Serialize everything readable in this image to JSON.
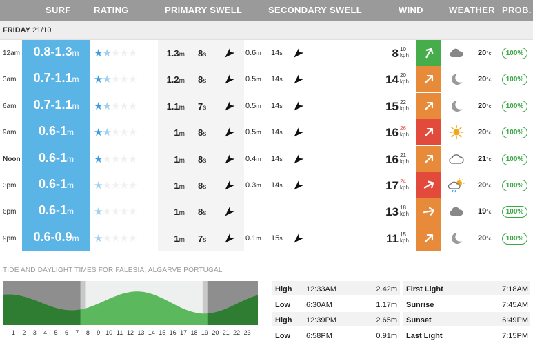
{
  "header": {
    "surf": "SURF",
    "rating": "RATING",
    "primary_swell": "PRIMARY SWELL",
    "secondary_swell": "SECONDARY SWELL",
    "wind": "WIND",
    "weather": "WEATHER",
    "prob": "PROB."
  },
  "day": {
    "name": "FRIDAY",
    "date": "21/10"
  },
  "colors": {
    "header": "#9a9a9a",
    "surf": "#5ab4e5",
    "star": "#3b9ce0",
    "wind_green": "#47ad4b",
    "wind_orange": "#e78b3a",
    "wind_red": "#e24a3b",
    "prob_green": "#3aa845",
    "tide_dark": "#2e7d32",
    "tide_light": "#5cb85c"
  },
  "rows": [
    {
      "time": "12am",
      "surf": "0.8-1.3",
      "surf_unit": "m",
      "stars_full": 1,
      "stars_half": 1,
      "p_height": "1.3",
      "p_height_unit": "m",
      "p_period": "8",
      "p_period_unit": "s",
      "p_dir_deg": 225,
      "s_height": "0.6",
      "s_height_unit": "m",
      "s_period": "14",
      "s_period_unit": "s",
      "s_dir_deg": 225,
      "wind": "8",
      "gust": "10",
      "wind_unit": "kph",
      "wind_level": "green",
      "wind_dir_deg": 30,
      "weather_icon": "cloud-icon",
      "temp": "20",
      "temp_unit": "°c",
      "prob": "100%"
    },
    {
      "time": "3am",
      "surf": "0.7-1.1",
      "surf_unit": "m",
      "stars_full": 1,
      "stars_half": 1,
      "p_height": "1.2",
      "p_height_unit": "m",
      "p_period": "8",
      "p_period_unit": "s",
      "p_dir_deg": 225,
      "s_height": "0.5",
      "s_height_unit": "m",
      "s_period": "14",
      "s_period_unit": "s",
      "s_dir_deg": 225,
      "wind": "14",
      "gust": "20",
      "wind_unit": "kph",
      "wind_level": "orange",
      "wind_dir_deg": 45,
      "weather_icon": "moon-icon",
      "temp": "20",
      "temp_unit": "°c",
      "prob": "100%"
    },
    {
      "time": "6am",
      "surf": "0.7-1.1",
      "surf_unit": "m",
      "stars_full": 1,
      "stars_half": 1,
      "p_height": "1.1",
      "p_height_unit": "m",
      "p_period": "7",
      "p_period_unit": "s",
      "p_dir_deg": 225,
      "s_height": "0.5",
      "s_height_unit": "m",
      "s_period": "14",
      "s_period_unit": "s",
      "s_dir_deg": 225,
      "wind": "15",
      "gust": "22",
      "wind_unit": "kph",
      "wind_level": "orange",
      "wind_dir_deg": 45,
      "weather_icon": "moon-icon",
      "temp": "20",
      "temp_unit": "°c",
      "prob": "100%"
    },
    {
      "time": "9am",
      "surf": "0.6-1",
      "surf_unit": "m",
      "stars_full": 1,
      "stars_half": 1,
      "p_height": "1",
      "p_height_unit": "m",
      "p_period": "8",
      "p_period_unit": "s",
      "p_dir_deg": 225,
      "s_height": "0.5",
      "s_height_unit": "m",
      "s_period": "14",
      "s_period_unit": "s",
      "s_dir_deg": 225,
      "wind": "16",
      "gust": "26",
      "wind_unit": "kph",
      "wind_level": "red",
      "wind_dir_deg": 45,
      "weather_icon": "sun-icon",
      "temp": "20",
      "temp_unit": "°c",
      "prob": "100%"
    },
    {
      "time": "Noon",
      "surf": "0.6-1",
      "surf_unit": "m",
      "stars_full": 1,
      "stars_half": 0,
      "p_height": "1",
      "p_height_unit": "m",
      "p_period": "8",
      "p_period_unit": "s",
      "p_dir_deg": 225,
      "s_height": "0.4",
      "s_height_unit": "m",
      "s_period": "14",
      "s_period_unit": "s",
      "s_dir_deg": 225,
      "wind": "16",
      "gust": "21",
      "wind_unit": "kph",
      "wind_level": "orange",
      "wind_dir_deg": 45,
      "weather_icon": "cloud-outline-icon",
      "temp": "21",
      "temp_unit": "°c",
      "prob": "100%"
    },
    {
      "time": "3pm",
      "surf": "0.6-1",
      "surf_unit": "m",
      "stars_full": 0,
      "stars_half": 1,
      "p_height": "1",
      "p_height_unit": "m",
      "p_period": "8",
      "p_period_unit": "s",
      "p_dir_deg": 225,
      "s_height": "0.3",
      "s_height_unit": "m",
      "s_period": "14",
      "s_period_unit": "s",
      "s_dir_deg": 225,
      "wind": "17",
      "gust": "24",
      "wind_unit": "kph",
      "wind_level": "red",
      "wind_dir_deg": 60,
      "weather_icon": "sun-cloud-rain-icon",
      "temp": "20",
      "temp_unit": "°c",
      "prob": "100%"
    },
    {
      "time": "6pm",
      "surf": "0.6-1",
      "surf_unit": "m",
      "stars_full": 0,
      "stars_half": 1,
      "p_height": "1",
      "p_height_unit": "m",
      "p_period": "8",
      "p_period_unit": "s",
      "p_dir_deg": 225,
      "s_height": "",
      "s_height_unit": "",
      "s_period": "",
      "s_period_unit": "",
      "s_dir_deg": null,
      "wind": "13",
      "gust": "18",
      "wind_unit": "kph",
      "wind_level": "orange",
      "wind_dir_deg": 80,
      "weather_icon": "cloud-icon",
      "temp": "19",
      "temp_unit": "°c",
      "prob": "100%"
    },
    {
      "time": "9pm",
      "surf": "0.6-0.9",
      "surf_unit": "m",
      "stars_full": 0,
      "stars_half": 1,
      "p_height": "1",
      "p_height_unit": "m",
      "p_period": "7",
      "p_period_unit": "s",
      "p_dir_deg": 225,
      "s_height": "0.1",
      "s_height_unit": "m",
      "s_period": "15",
      "s_period_unit": "s",
      "s_dir_deg": 225,
      "wind": "11",
      "gust": "15",
      "wind_unit": "kph",
      "wind_level": "orange",
      "wind_dir_deg": 45,
      "weather_icon": "moon-icon",
      "temp": "20",
      "temp_unit": "°c",
      "prob": "100%"
    }
  ],
  "tide_section_title": "TIDE AND DAYLIGHT TIMES FOR FALESIA, ALGARVE PORTUGAL",
  "tide_chart": {
    "hours": [
      "1",
      "2",
      "3",
      "4",
      "5",
      "6",
      "7",
      "8",
      "9",
      "10",
      "11",
      "12",
      "13",
      "14",
      "15",
      "16",
      "17",
      "18",
      "19",
      "20",
      "21",
      "22",
      "23"
    ],
    "first_light_hour": 7.3,
    "sunrise_hour": 7.75,
    "sunset_hour": 18.8,
    "last_light_hour": 19.25,
    "high_tides": [
      {
        "hour": 0.55,
        "height": 2.42
      },
      {
        "hour": 12.65,
        "height": 2.65
      }
    ],
    "low_tides": [
      {
        "hour": 6.5,
        "height": 1.17
      },
      {
        "hour": 18.97,
        "height": 0.91
      }
    ]
  },
  "tides": [
    {
      "kind": "High",
      "time": "12:33AM",
      "height": "2.42m"
    },
    {
      "kind": "Low",
      "time": "6:30AM",
      "height": "1.17m"
    },
    {
      "kind": "High",
      "time": "12:39PM",
      "height": "2.65m"
    },
    {
      "kind": "Low",
      "time": "6:58PM",
      "height": "0.91m"
    }
  ],
  "daylight": [
    {
      "label": "First Light",
      "time": "7:18AM"
    },
    {
      "label": "Sunrise",
      "time": "7:45AM"
    },
    {
      "label": "Sunset",
      "time": "6:49PM"
    },
    {
      "label": "Last Light",
      "time": "7:15PM"
    }
  ]
}
